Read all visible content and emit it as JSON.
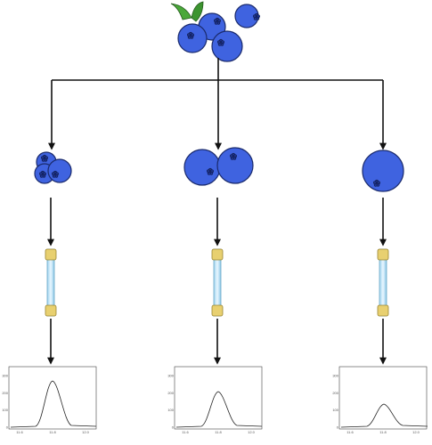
{
  "panels": [
    {
      "yticks": [
        "300",
        "200",
        "100",
        "0"
      ],
      "xticks": [
        "11.6",
        "11.8",
        "12.0"
      ]
    },
    {
      "yticks": [
        "300",
        "200",
        "100",
        "0"
      ],
      "xticks": [
        "11.6",
        "11.8",
        "12.0"
      ]
    },
    {
      "yticks": [
        "300",
        "200",
        "100",
        "0"
      ],
      "xticks": [
        "11.6",
        "11.8",
        "12.0"
      ]
    }
  ]
}
